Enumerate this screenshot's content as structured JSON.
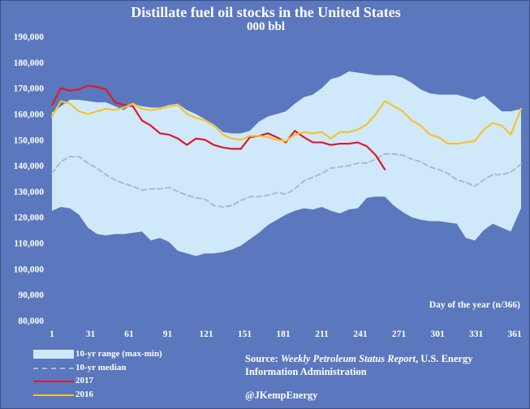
{
  "chart_data": {
    "type": "line",
    "title": "Distillate fuel oil stocks in the United States",
    "subtitle": "000 bbl",
    "xlabel": "Day of the year (n/366)",
    "ylabel": "",
    "xlim": [
      1,
      366
    ],
    "ylim": [
      80000,
      190000
    ],
    "xticks": [
      1,
      31,
      61,
      91,
      121,
      151,
      181,
      211,
      241,
      271,
      301,
      331,
      361
    ],
    "yticks": [
      80000,
      90000,
      100000,
      110000,
      120000,
      130000,
      140000,
      150000,
      160000,
      170000,
      180000,
      190000
    ],
    "ytick_labels": [
      "80,000",
      "90,000",
      "100,000",
      "110,000",
      "120,000",
      "130,000",
      "140,000",
      "150,000",
      "160,000",
      "170,000",
      "180,000",
      "190,000"
    ],
    "grid": false,
    "legend_position": "bottom-left",
    "range": {
      "name": "10-yr range (max-min)",
      "color": "#cfe9fb",
      "x": [
        1,
        8,
        15,
        22,
        29,
        36,
        43,
        50,
        57,
        64,
        71,
        78,
        85,
        92,
        99,
        106,
        113,
        120,
        127,
        134,
        141,
        148,
        155,
        162,
        169,
        176,
        183,
        190,
        197,
        204,
        211,
        218,
        225,
        232,
        239,
        246,
        253,
        260,
        267,
        274,
        281,
        288,
        295,
        302,
        309,
        316,
        323,
        330,
        337,
        344,
        351,
        358,
        366
      ],
      "max": [
        160500,
        163000,
        165500,
        165500,
        165000,
        164500,
        164500,
        163000,
        161500,
        164000,
        163000,
        162500,
        162500,
        163500,
        164000,
        161500,
        160000,
        158000,
        156000,
        153000,
        152500,
        152500,
        153500,
        157000,
        159000,
        160000,
        161000,
        164000,
        166500,
        167500,
        170000,
        173500,
        174500,
        176500,
        176000,
        175500,
        175000,
        175000,
        175000,
        174000,
        172000,
        169500,
        168000,
        167500,
        167500,
        167500,
        166500,
        165500,
        167000,
        164000,
        161000,
        161000,
        162000
      ],
      "min": [
        122500,
        124000,
        123500,
        121000,
        116000,
        113500,
        113000,
        113500,
        113500,
        114000,
        114500,
        111000,
        112000,
        110500,
        107000,
        106000,
        105000,
        106000,
        106000,
        106500,
        107500,
        109000,
        111500,
        114000,
        117000,
        119000,
        121000,
        122500,
        123500,
        123000,
        124000,
        122500,
        121500,
        123000,
        123500,
        127500,
        128000,
        128000,
        124500,
        122000,
        120000,
        119000,
        118500,
        118500,
        118000,
        117500,
        112000,
        111000,
        115000,
        117500,
        116000,
        114500,
        123500
      ]
    },
    "series": [
      {
        "name": "10-yr median",
        "color": "#a7b9d9",
        "dash": true,
        "x": [
          1,
          8,
          15,
          22,
          29,
          36,
          43,
          50,
          57,
          64,
          71,
          78,
          85,
          92,
          99,
          106,
          113,
          120,
          127,
          134,
          141,
          148,
          155,
          162,
          169,
          176,
          183,
          190,
          197,
          204,
          211,
          218,
          225,
          232,
          239,
          246,
          253,
          260,
          267,
          274,
          281,
          288,
          295,
          302,
          309,
          316,
          323,
          330,
          337,
          344,
          351,
          358,
          366
        ],
        "values": [
          137000,
          141500,
          143500,
          143500,
          141000,
          139000,
          136500,
          134500,
          133000,
          132000,
          130500,
          131000,
          131000,
          131500,
          130000,
          128500,
          127500,
          127000,
          124500,
          124000,
          124500,
          126500,
          128000,
          128000,
          128500,
          129500,
          129000,
          131000,
          134000,
          135500,
          137000,
          139000,
          139500,
          140000,
          141000,
          141000,
          142500,
          144500,
          144500,
          144000,
          142500,
          141500,
          139500,
          138500,
          137000,
          134500,
          133500,
          132000,
          134500,
          136500,
          136500,
          137500,
          140500
        ]
      },
      {
        "name": "2017",
        "color": "#e0182c",
        "dash": false,
        "x": [
          1,
          8,
          15,
          22,
          29,
          36,
          43,
          50,
          57,
          64,
          71,
          78,
          85,
          92,
          99,
          106,
          113,
          120,
          127,
          134,
          141,
          148,
          155,
          162,
          169,
          176,
          183,
          190,
          197,
          204,
          211,
          218,
          225,
          232,
          239,
          246,
          253,
          260
        ],
        "values": [
          163500,
          170000,
          169000,
          169500,
          171000,
          170500,
          169500,
          164500,
          163500,
          163000,
          157500,
          155500,
          152500,
          152000,
          150500,
          148000,
          150500,
          150000,
          148000,
          147000,
          146500,
          146500,
          151000,
          151500,
          152500,
          151000,
          149000,
          153500,
          151000,
          149000,
          149000,
          148000,
          148500,
          148500,
          149000,
          147500,
          144000,
          138500
        ]
      },
      {
        "name": "2016",
        "color": "#f7c32b",
        "dash": false,
        "x": [
          1,
          8,
          15,
          22,
          29,
          36,
          43,
          50,
          57,
          64,
          71,
          78,
          85,
          92,
          99,
          106,
          113,
          120,
          127,
          134,
          141,
          148,
          155,
          162,
          169,
          176,
          183,
          190,
          197,
          204,
          211,
          218,
          225,
          232,
          239,
          246,
          253,
          260,
          267,
          274,
          281,
          288,
          295,
          302,
          309,
          316,
          323,
          330,
          337,
          344,
          351,
          358,
          366
        ],
        "values": [
          159000,
          165000,
          164000,
          161000,
          160000,
          161000,
          162000,
          161500,
          162500,
          164000,
          162000,
          161500,
          162000,
          163000,
          163500,
          160000,
          158500,
          157500,
          155500,
          152000,
          150500,
          150000,
          151500,
          151500,
          151000,
          150000,
          149500,
          152000,
          153000,
          152500,
          153000,
          150500,
          153000,
          153000,
          154000,
          156000,
          160000,
          165000,
          163000,
          161000,
          157500,
          155500,
          152000,
          151000,
          148500,
          148500,
          149000,
          149500,
          154000,
          156500,
          155500,
          152000,
          162000
        ]
      }
    ]
  },
  "legend": [
    {
      "label": "10-yr range (max-min)",
      "kind": "band",
      "color": "#cfe9fb"
    },
    {
      "label": "10-yr median",
      "kind": "dash",
      "color": "#a7b9d9"
    },
    {
      "label": "2017",
      "kind": "line",
      "color": "#e0182c"
    },
    {
      "label": "2016",
      "kind": "line",
      "color": "#f7c32b"
    }
  ],
  "source": {
    "prefix": "Source: ",
    "italic": "Weekly Petroleum Status Report",
    "rest": ", U.S. Energy Information Administration"
  },
  "twitter": "@JKempEnergy"
}
